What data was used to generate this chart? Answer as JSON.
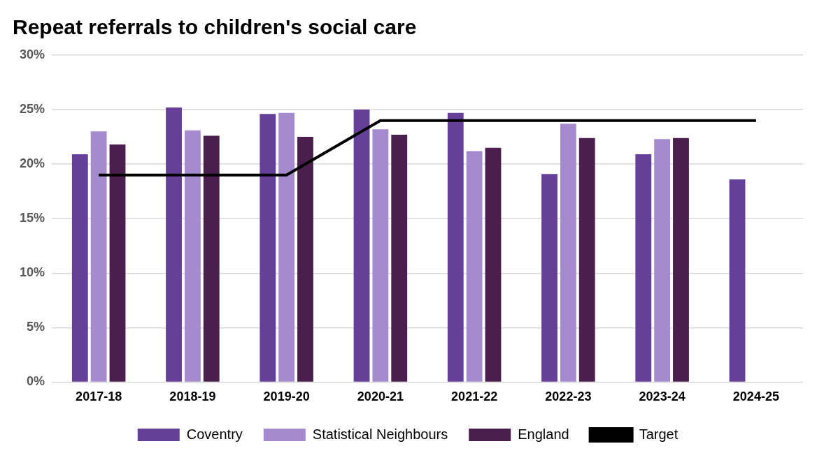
{
  "chart_data": {
    "type": "bar",
    "title": "Repeat referrals to children's social care",
    "categories": [
      "2017-18",
      "2018-19",
      "2019-20",
      "2020-21",
      "2021-22",
      "2022-23",
      "2023-24",
      "2024-25"
    ],
    "series": [
      {
        "name": "Coventry",
        "color": "#663f99",
        "values": [
          20.9,
          25.2,
          24.6,
          25.0,
          24.7,
          19.1,
          20.9,
          18.6
        ]
      },
      {
        "name": "Statistical Neighbours",
        "color": "#a58ad0",
        "values": [
          23.0,
          23.1,
          24.7,
          23.2,
          21.2,
          23.7,
          22.3,
          null
        ]
      },
      {
        "name": "England",
        "color": "#4b1f4d",
        "values": [
          21.8,
          22.6,
          22.5,
          22.7,
          21.5,
          22.4,
          22.4,
          null
        ]
      },
      {
        "name": "Target",
        "type": "line",
        "color": "#000000",
        "values": [
          19,
          19,
          19,
          24,
          24,
          24,
          24,
          24
        ]
      }
    ],
    "ylim": [
      0,
      30
    ],
    "yticks": [
      {
        "value": 0,
        "label": "0%"
      },
      {
        "value": 5,
        "label": "5%"
      },
      {
        "value": 10,
        "label": "10%"
      },
      {
        "value": 15,
        "label": "15%"
      },
      {
        "value": 20,
        "label": "20%"
      },
      {
        "value": 25,
        "label": "25%"
      },
      {
        "value": 30,
        "label": "30%"
      }
    ],
    "grid": "y",
    "legend": "bottom",
    "marker": "none",
    "line_style": "solid"
  }
}
